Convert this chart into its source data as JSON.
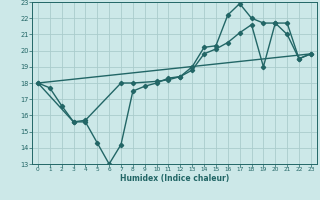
{
  "xlabel": "Humidex (Indice chaleur)",
  "bg_color": "#cce8e8",
  "grid_color": "#aacccc",
  "line_color": "#226666",
  "xlim": [
    -0.5,
    23.5
  ],
  "ylim": [
    13,
    23
  ],
  "line1_x": [
    0,
    1,
    2,
    3,
    4,
    5,
    6,
    7,
    8,
    9,
    10,
    11,
    12,
    13,
    14,
    15,
    16,
    17,
    18,
    19,
    20,
    21,
    22,
    23
  ],
  "line1_y": [
    18.0,
    17.7,
    16.6,
    15.6,
    15.6,
    14.3,
    13.0,
    14.2,
    17.5,
    17.8,
    18.0,
    18.3,
    18.4,
    19.0,
    20.2,
    20.3,
    22.2,
    22.9,
    22.0,
    21.7,
    21.7,
    21.0,
    19.5,
    19.8
  ],
  "line2_x": [
    0,
    3,
    4,
    7,
    8,
    10,
    11,
    12,
    13,
    14,
    15,
    16,
    17,
    18,
    19,
    20,
    21,
    22,
    23
  ],
  "line2_y": [
    18.0,
    15.6,
    15.7,
    18.0,
    18.0,
    18.1,
    18.2,
    18.4,
    18.8,
    19.8,
    20.1,
    20.5,
    21.1,
    21.6,
    19.0,
    21.7,
    21.7,
    19.5,
    19.8
  ],
  "line3_x": [
    0,
    23
  ],
  "line3_y": [
    18.0,
    19.8
  ]
}
